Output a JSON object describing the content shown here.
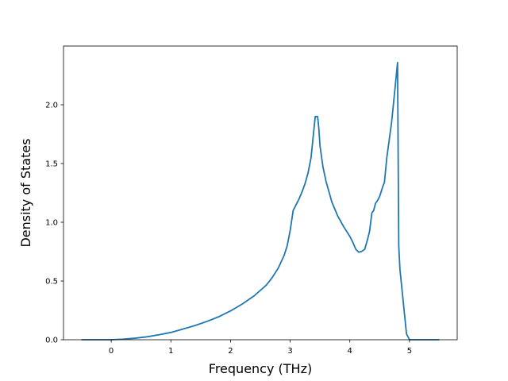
{
  "chart_data": {
    "type": "line",
    "title": "",
    "xlabel": "Frequency (THz)",
    "ylabel": "Density of States",
    "xlim": [
      -0.8,
      5.8
    ],
    "ylim": [
      0.0,
      2.5
    ],
    "xticks": [
      0,
      1,
      2,
      3,
      4,
      5
    ],
    "yticks": [
      0.0,
      0.5,
      1.0,
      1.5,
      2.0
    ],
    "xtick_labels": [
      "0",
      "1",
      "2",
      "3",
      "4",
      "5"
    ],
    "ytick_labels": [
      "0.0",
      "0.5",
      "1.0",
      "1.5",
      "2.0"
    ],
    "grid": false,
    "series": [
      {
        "color": "#1f77b4",
        "x": [
          -0.5,
          0.0,
          0.2,
          0.4,
          0.6,
          0.8,
          1.0,
          1.2,
          1.4,
          1.6,
          1.8,
          2.0,
          2.2,
          2.4,
          2.6,
          2.7,
          2.8,
          2.9,
          2.95,
          3.0,
          3.05,
          3.1,
          3.15,
          3.2,
          3.25,
          3.3,
          3.35,
          3.38,
          3.42,
          3.46,
          3.48,
          3.5,
          3.55,
          3.6,
          3.7,
          3.8,
          3.9,
          4.0,
          4.05,
          4.1,
          4.15,
          4.2,
          4.25,
          4.3,
          4.33,
          4.37,
          4.4,
          4.43,
          4.47,
          4.5,
          4.55,
          4.58,
          4.62,
          4.66,
          4.7,
          4.75,
          4.8,
          4.82,
          4.84,
          4.87,
          4.9,
          4.95,
          5.0,
          5.5
        ],
        "y": [
          0.0,
          0.0,
          0.005,
          0.013,
          0.025,
          0.042,
          0.062,
          0.09,
          0.12,
          0.155,
          0.195,
          0.245,
          0.305,
          0.375,
          0.465,
          0.53,
          0.61,
          0.72,
          0.8,
          0.93,
          1.1,
          1.15,
          1.2,
          1.26,
          1.33,
          1.42,
          1.55,
          1.7,
          1.9,
          1.9,
          1.8,
          1.65,
          1.47,
          1.35,
          1.17,
          1.05,
          0.96,
          0.88,
          0.83,
          0.77,
          0.745,
          0.752,
          0.77,
          0.86,
          0.92,
          1.08,
          1.1,
          1.16,
          1.19,
          1.22,
          1.3,
          1.34,
          1.55,
          1.7,
          1.85,
          2.1,
          2.36,
          0.8,
          0.6,
          0.45,
          0.3,
          0.05,
          0.0,
          0.0
        ]
      }
    ]
  }
}
